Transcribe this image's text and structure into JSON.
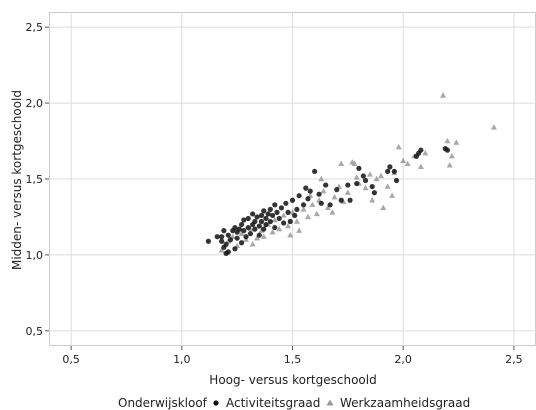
{
  "chart_data": {
    "type": "scatter",
    "xlabel": "Hoog- versus kortgeschoold",
    "ylabel": "Midden- versus kortgeschoold",
    "xlim": [
      0.4,
      2.6
    ],
    "ylim": [
      0.4,
      2.6
    ],
    "xticks": [
      {
        "value": 0.5,
        "label": "0,5"
      },
      {
        "value": 1.0,
        "label": "1,0"
      },
      {
        "value": 1.5,
        "label": "1,5"
      },
      {
        "value": 2.0,
        "label": "2,0"
      },
      {
        "value": 2.5,
        "label": "2,5"
      }
    ],
    "yticks": [
      {
        "value": 0.5,
        "label": "0,5"
      },
      {
        "value": 1.0,
        "label": "1,0"
      },
      {
        "value": 1.5,
        "label": "1,5"
      },
      {
        "value": 2.0,
        "label": "2,0"
      },
      {
        "value": 2.5,
        "label": "2,5"
      }
    ],
    "grid": true,
    "legend": {
      "title": "Onderwijskloof",
      "position": "bottom"
    },
    "series": [
      {
        "name": "Activiteitsgraad",
        "marker": "circle",
        "color": "#111111",
        "points": [
          [
            1.12,
            1.09
          ],
          [
            1.16,
            1.12
          ],
          [
            1.18,
            1.09
          ],
          [
            1.18,
            1.12
          ],
          [
            1.19,
            1.05
          ],
          [
            1.19,
            1.16
          ],
          [
            1.2,
            1.01
          ],
          [
            1.2,
            1.07
          ],
          [
            1.21,
            1.02
          ],
          [
            1.21,
            1.13
          ],
          [
            1.22,
            1.1
          ],
          [
            1.23,
            1.16
          ],
          [
            1.24,
            1.04
          ],
          [
            1.24,
            1.18
          ],
          [
            1.25,
            1.11
          ],
          [
            1.25,
            1.15
          ],
          [
            1.26,
            1.17
          ],
          [
            1.27,
            1.08
          ],
          [
            1.27,
            1.2
          ],
          [
            1.28,
            1.16
          ],
          [
            1.28,
            1.23
          ],
          [
            1.29,
            1.12
          ],
          [
            1.3,
            1.18
          ],
          [
            1.3,
            1.24
          ],
          [
            1.31,
            1.14
          ],
          [
            1.32,
            1.2
          ],
          [
            1.32,
            1.27
          ],
          [
            1.33,
            1.17
          ],
          [
            1.33,
            1.22
          ],
          [
            1.34,
            1.25
          ],
          [
            1.35,
            1.19
          ],
          [
            1.35,
            1.13
          ],
          [
            1.36,
            1.26
          ],
          [
            1.36,
            1.22
          ],
          [
            1.37,
            1.17
          ],
          [
            1.37,
            1.29
          ],
          [
            1.38,
            1.24
          ],
          [
            1.38,
            1.2
          ],
          [
            1.39,
            1.27
          ],
          [
            1.4,
            1.22
          ],
          [
            1.4,
            1.3
          ],
          [
            1.41,
            1.26
          ],
          [
            1.42,
            1.18
          ],
          [
            1.42,
            1.33
          ],
          [
            1.43,
            1.28
          ],
          [
            1.44,
            1.24
          ],
          [
            1.45,
            1.31
          ],
          [
            1.46,
            1.21
          ],
          [
            1.47,
            1.34
          ],
          [
            1.48,
            1.28
          ],
          [
            1.49,
            1.22
          ],
          [
            1.5,
            1.36
          ],
          [
            1.51,
            1.26
          ],
          [
            1.52,
            1.3
          ],
          [
            1.53,
            1.39
          ],
          [
            1.55,
            1.33
          ],
          [
            1.56,
            1.44
          ],
          [
            1.57,
            1.37
          ],
          [
            1.58,
            1.42
          ],
          [
            1.6,
            1.55
          ],
          [
            1.62,
            1.4
          ],
          [
            1.63,
            1.34
          ],
          [
            1.65,
            1.46
          ],
          [
            1.67,
            1.33
          ],
          [
            1.7,
            1.43
          ],
          [
            1.72,
            1.36
          ],
          [
            1.75,
            1.46
          ],
          [
            1.76,
            1.36
          ],
          [
            1.79,
            1.47
          ],
          [
            1.8,
            1.57
          ],
          [
            1.82,
            1.52
          ],
          [
            1.83,
            1.49
          ],
          [
            1.86,
            1.45
          ],
          [
            1.87,
            1.41
          ],
          [
            1.93,
            1.55
          ],
          [
            1.94,
            1.58
          ],
          [
            1.96,
            1.55
          ],
          [
            1.97,
            1.49
          ],
          [
            2.06,
            1.65
          ],
          [
            2.07,
            1.67
          ],
          [
            2.08,
            1.69
          ],
          [
            2.19,
            1.7
          ],
          [
            2.2,
            1.69
          ]
        ]
      },
      {
        "name": "Werkzaamheidsgraad",
        "marker": "triangle",
        "color": "#999999",
        "points": [
          [
            1.18,
            1.03
          ],
          [
            1.21,
            1.09
          ],
          [
            1.23,
            1.12
          ],
          [
            1.25,
            1.06
          ],
          [
            1.27,
            1.14
          ],
          [
            1.29,
            1.1
          ],
          [
            1.31,
            1.17
          ],
          [
            1.32,
            1.07
          ],
          [
            1.34,
            1.11
          ],
          [
            1.36,
            1.16
          ],
          [
            1.37,
            1.12
          ],
          [
            1.39,
            1.2
          ],
          [
            1.41,
            1.15
          ],
          [
            1.42,
            1.23
          ],
          [
            1.44,
            1.17
          ],
          [
            1.46,
            1.26
          ],
          [
            1.48,
            1.19
          ],
          [
            1.49,
            1.13
          ],
          [
            1.5,
            1.28
          ],
          [
            1.52,
            1.22
          ],
          [
            1.53,
            1.16
          ],
          [
            1.55,
            1.3
          ],
          [
            1.57,
            1.25
          ],
          [
            1.58,
            1.39
          ],
          [
            1.59,
            1.33
          ],
          [
            1.61,
            1.27
          ],
          [
            1.62,
            1.36
          ],
          [
            1.63,
            1.5
          ],
          [
            1.64,
            1.42
          ],
          [
            1.66,
            1.31
          ],
          [
            1.68,
            1.28
          ],
          [
            1.69,
            1.38
          ],
          [
            1.71,
            1.45
          ],
          [
            1.72,
            1.6
          ],
          [
            1.73,
            1.35
          ],
          [
            1.75,
            1.41
          ],
          [
            1.77,
            1.61
          ],
          [
            1.78,
            1.6
          ],
          [
            1.79,
            1.51
          ],
          [
            1.8,
            1.47
          ],
          [
            1.83,
            1.44
          ],
          [
            1.85,
            1.53
          ],
          [
            1.86,
            1.36
          ],
          [
            1.88,
            1.5
          ],
          [
            1.9,
            1.52
          ],
          [
            1.91,
            1.31
          ],
          [
            1.93,
            1.45
          ],
          [
            1.95,
            1.39
          ],
          [
            1.96,
            1.54
          ],
          [
            1.98,
            1.71
          ],
          [
            2.0,
            1.62
          ],
          [
            2.02,
            1.6
          ],
          [
            2.05,
            1.65
          ],
          [
            2.08,
            1.58
          ],
          [
            2.1,
            1.67
          ],
          [
            2.18,
            2.05
          ],
          [
            2.2,
            1.75
          ],
          [
            2.21,
            1.59
          ],
          [
            2.22,
            1.65
          ],
          [
            2.24,
            1.74
          ],
          [
            2.41,
            1.84
          ]
        ]
      }
    ]
  }
}
